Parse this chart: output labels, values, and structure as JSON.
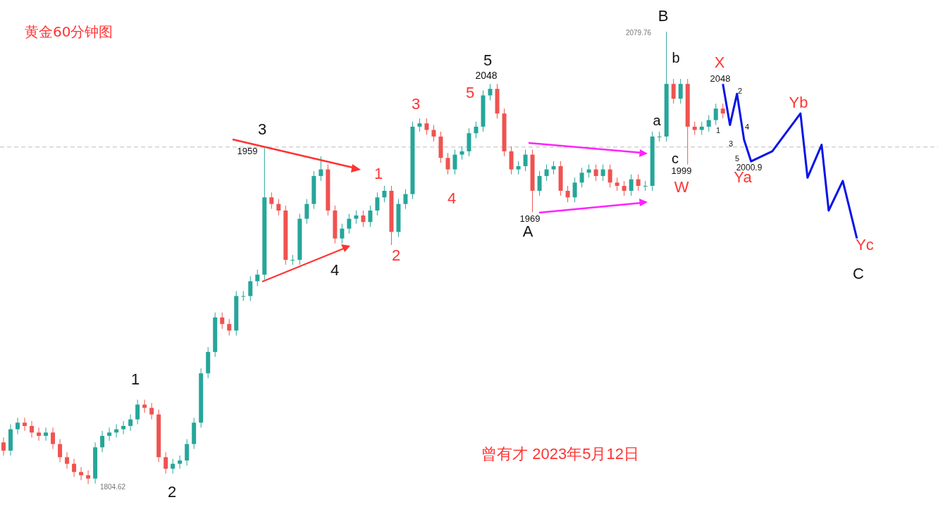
{
  "chart_data": {
    "type": "candlestick",
    "title": "黄金60分钟图",
    "tick_labels": false,
    "categories": [
      null,
      null,
      null,
      null,
      null,
      null,
      null,
      null,
      null,
      null,
      null,
      null,
      null,
      null,
      null,
      null,
      null,
      null,
      null,
      null,
      null,
      null,
      null,
      null,
      null,
      null,
      null,
      null,
      null,
      null,
      null,
      null,
      null,
      null,
      null,
      null,
      null,
      null,
      null,
      null,
      null,
      null,
      null,
      null,
      null,
      null,
      null,
      null,
      null,
      null,
      null,
      null,
      null,
      null,
      null,
      null,
      null,
      null,
      null,
      null,
      null,
      null,
      null,
      null,
      null,
      null,
      null,
      null,
      null,
      null,
      null,
      null,
      null,
      null,
      null,
      null,
      null,
      null,
      null,
      null,
      null,
      null,
      null,
      null,
      null,
      null,
      null,
      null,
      null,
      null,
      null,
      null,
      null,
      null,
      null,
      null,
      null,
      null,
      null,
      null,
      null,
      null,
      null,
      null,
      null,
      null,
      null,
      null,
      null,
      null,
      null,
      null,
      null,
      null,
      null,
      null,
      null,
      null,
      null,
      null,
      null,
      null,
      null,
      null,
      null,
      null,
      null,
      null,
      null,
      null,
      null,
      null,
      null
    ],
    "ohlc": [
      [
        1830,
        1833,
        1822,
        1825
      ],
      [
        1825,
        1841,
        1822,
        1838
      ],
      [
        1838,
        1845,
        1835,
        1842
      ],
      [
        1842,
        1845,
        1837,
        1840
      ],
      [
        1840,
        1843,
        1833,
        1836
      ],
      [
        1836,
        1839,
        1831,
        1834
      ],
      [
        1834,
        1839,
        1831,
        1836
      ],
      [
        1836,
        1839,
        1826,
        1829
      ],
      [
        1829,
        1832,
        1818,
        1821
      ],
      [
        1821,
        1824,
        1814,
        1817
      ],
      [
        1817,
        1820,
        1809,
        1812
      ],
      [
        1812,
        1815,
        1807,
        1810
      ],
      [
        1810,
        1813,
        1804.62,
        1808
      ],
      [
        1808,
        1830,
        1805,
        1827
      ],
      [
        1827,
        1837,
        1824,
        1834
      ],
      [
        1834,
        1839,
        1831,
        1836
      ],
      [
        1836,
        1841,
        1833,
        1838
      ],
      [
        1838,
        1843,
        1835,
        1840
      ],
      [
        1840,
        1847,
        1837,
        1844
      ],
      [
        1844,
        1856,
        1841,
        1853
      ],
      [
        1853,
        1856,
        1848,
        1851
      ],
      [
        1851,
        1854,
        1844,
        1847
      ],
      [
        1847,
        1850,
        1818,
        1821
      ],
      [
        1821,
        1824,
        1811,
        1814
      ],
      [
        1814,
        1820,
        1811,
        1817
      ],
      [
        1817,
        1822,
        1814,
        1819
      ],
      [
        1819,
        1832,
        1816,
        1829
      ],
      [
        1829,
        1845,
        1826,
        1842
      ],
      [
        1842,
        1875,
        1839,
        1872
      ],
      [
        1872,
        1888,
        1869,
        1885
      ],
      [
        1885,
        1909,
        1882,
        1906
      ],
      [
        1906,
        1909,
        1899,
        1902
      ],
      [
        1902,
        1905,
        1895,
        1898
      ],
      [
        1898,
        1922,
        1895,
        1919
      ],
      [
        1919,
        1922,
        1916,
        1919
      ],
      [
        1919,
        1931,
        1916,
        1928
      ],
      [
        1928,
        1935,
        1925,
        1932
      ],
      [
        1932,
        2009,
        1929,
        1979
      ],
      [
        1979,
        1982,
        1972,
        1975
      ],
      [
        1975,
        1978,
        1968,
        1971
      ],
      [
        1971,
        1974,
        1938,
        1941
      ],
      [
        1941,
        1944,
        1938,
        1941
      ],
      [
        1941,
        1969,
        1938,
        1966
      ],
      [
        1966,
        1978,
        1963,
        1975
      ],
      [
        1975,
        1995,
        1972,
        1992
      ],
      [
        1992,
        2004,
        1989,
        1996
      ],
      [
        1996,
        1999,
        1968,
        1971
      ],
      [
        1971,
        1974,
        1951,
        1954
      ],
      [
        1954,
        1963,
        1951,
        1960
      ],
      [
        1960,
        1969,
        1957,
        1966
      ],
      [
        1966,
        1971,
        1963,
        1968
      ],
      [
        1968,
        1971,
        1961,
        1964
      ],
      [
        1964,
        1974,
        1961,
        1971
      ],
      [
        1971,
        1982,
        1968,
        1979
      ],
      [
        1979,
        1986,
        1976,
        1983
      ],
      [
        1983,
        1986,
        1950,
        1958
      ],
      [
        1958,
        1978,
        1955,
        1975
      ],
      [
        1975,
        1984,
        1972,
        1981
      ],
      [
        1981,
        2025,
        1978,
        2022
      ],
      [
        2022,
        2027,
        2019,
        2024
      ],
      [
        2024,
        2027,
        2017,
        2020
      ],
      [
        2020,
        2023,
        2013,
        2016
      ],
      [
        2016,
        2019,
        2000,
        2003
      ],
      [
        2003,
        2006,
        1993,
        1996
      ],
      [
        1996,
        2008,
        1993,
        2005
      ],
      [
        2005,
        2010,
        2002,
        2007
      ],
      [
        2007,
        2021,
        2004,
        2018
      ],
      [
        2018,
        2025,
        2015,
        2022
      ],
      [
        2022,
        2044,
        2019,
        2041
      ],
      [
        2041,
        2048,
        2038,
        2045
      ],
      [
        2045,
        2048,
        2027,
        2030
      ],
      [
        2030,
        2033,
        2004,
        2007
      ],
      [
        2007,
        2010,
        1993,
        1996
      ],
      [
        1996,
        2001,
        1993,
        1998
      ],
      [
        1998,
        2008,
        1995,
        2005
      ],
      [
        2005,
        2008,
        1970,
        1983
      ],
      [
        1983,
        1995,
        1980,
        1992
      ],
      [
        1992,
        1999,
        1989,
        1996
      ],
      [
        1996,
        2001,
        1993,
        1998
      ],
      [
        1998,
        2001,
        1980,
        1983
      ],
      [
        1983,
        1986,
        1976,
        1979
      ],
      [
        1979,
        1991,
        1976,
        1988
      ],
      [
        1988,
        1997,
        1985,
        1994
      ],
      [
        1994,
        1999,
        1991,
        1996
      ],
      [
        1996,
        1999,
        1989,
        1992
      ],
      [
        1992,
        1999,
        1989,
        1996
      ],
      [
        1996,
        1999,
        1985,
        1988
      ],
      [
        1988,
        1991,
        1983,
        1986
      ],
      [
        1986,
        1989,
        1980,
        1983
      ],
      [
        1983,
        1993,
        1980,
        1990
      ],
      [
        1990,
        1993,
        1983,
        1986
      ],
      [
        1986,
        1989,
        1983,
        1986
      ],
      [
        1986,
        2019,
        1983,
        2016
      ],
      [
        2016,
        2019,
        2013,
        2016
      ],
      [
        2016,
        2079.76,
        2013,
        2048
      ],
      [
        2048,
        2051,
        2036,
        2039
      ],
      [
        2039,
        2051,
        2036,
        2048
      ],
      [
        2048,
        2051,
        1999,
        2022
      ],
      [
        2022,
        2025,
        2017,
        2020
      ],
      [
        2020,
        2025,
        2017,
        2022
      ],
      [
        2022,
        2029,
        2019,
        2026
      ],
      [
        2026,
        2036,
        2023,
        2033
      ],
      [
        2033,
        2036,
        2027,
        2030
      ],
      null,
      null,
      null,
      null,
      null,
      null,
      null,
      null,
      null,
      null,
      null,
      null,
      null,
      null,
      null,
      null,
      null,
      null,
      null,
      null,
      null,
      null,
      null,
      null,
      null,
      null,
      null,
      null,
      null,
      null
    ],
    "series": [
      {
        "type": "line",
        "color": "#0a14e6",
        "line_style": "solid",
        "marker": "none",
        "values": [
          null,
          null,
          null,
          null,
          null,
          null,
          null,
          null,
          null,
          null,
          null,
          null,
          null,
          null,
          null,
          null,
          null,
          null,
          null,
          null,
          null,
          null,
          null,
          null,
          null,
          null,
          null,
          null,
          null,
          null,
          null,
          null,
          null,
          null,
          null,
          null,
          null,
          null,
          null,
          null,
          null,
          null,
          null,
          null,
          null,
          null,
          null,
          null,
          null,
          null,
          null,
          null,
          null,
          null,
          null,
          null,
          null,
          null,
          null,
          null,
          null,
          null,
          null,
          null,
          null,
          null,
          null,
          null,
          null,
          null,
          null,
          null,
          null,
          null,
          null,
          null,
          null,
          null,
          null,
          null,
          null,
          null,
          null,
          null,
          null,
          null,
          null,
          null,
          null,
          null,
          null,
          null,
          null,
          null,
          null,
          null,
          null,
          null,
          null,
          null,
          null,
          null,
          2048,
          2023,
          2042,
          2014,
          2000.9,
          null,
          null,
          2007,
          null,
          null,
          null,
          2030,
          1991,
          null,
          2011,
          1971,
          null,
          1989,
          null,
          1954,
          null,
          null,
          null,
          null,
          null,
          null,
          null,
          null,
          null,
          null,
          null
        ]
      }
    ],
    "ref_lines": [
      {
        "axis": "y",
        "value": 2009.6,
        "color": "#bbbbbb",
        "line_style": "dashed"
      }
    ],
    "annotations": [
      "1",
      "2",
      "3",
      "4",
      "5",
      "A",
      "B",
      "C",
      "1959",
      "2048",
      "1969",
      "1999",
      "2048",
      "2000.9",
      "2079.76",
      "1804.62",
      "1",
      "2",
      "3",
      "4",
      "5",
      "a",
      "b",
      "c",
      "X",
      "W",
      "Ya",
      "Yb",
      "Yc",
      "1",
      "2",
      "3",
      "4",
      "5",
      "曾有才 2023年5月12日"
    ]
  }
}
